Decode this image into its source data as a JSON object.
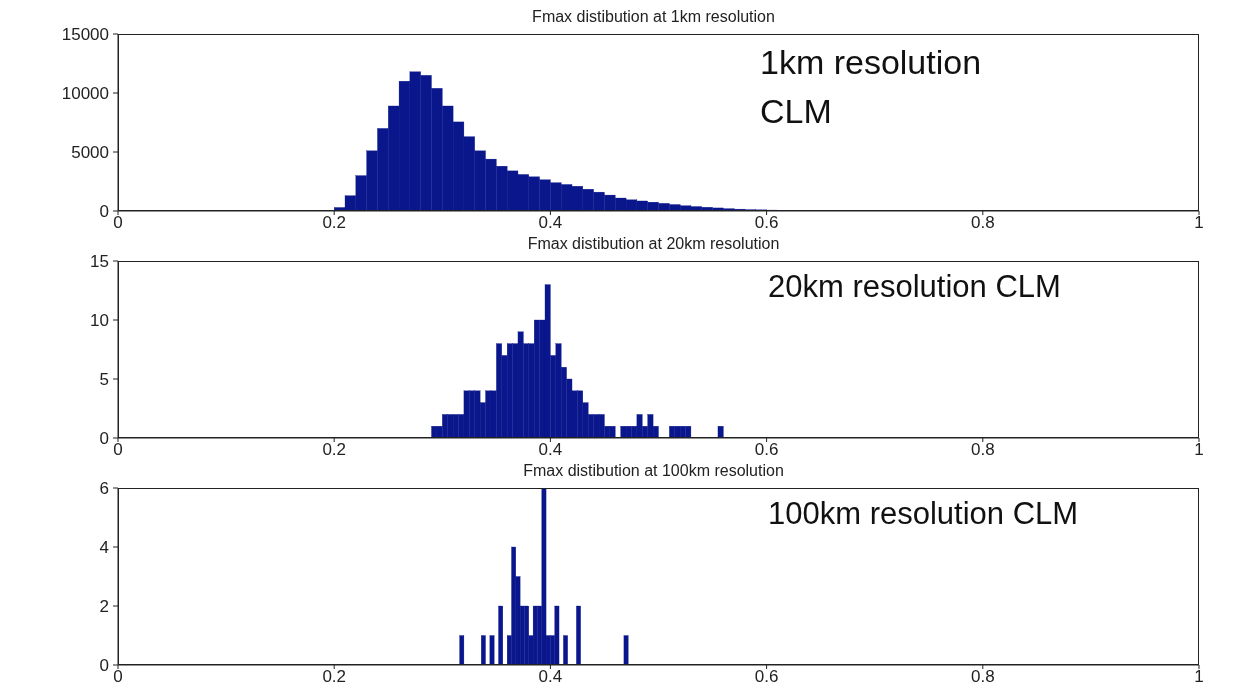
{
  "chart_data": [
    {
      "type": "histogram",
      "title": "Fmax distibution at 1km resolution",
      "color": "#0a168c",
      "annotations": [
        "1km resolution CLM"
      ],
      "bins": [
        0,
        0.01,
        0.02,
        0.03,
        0.04,
        0.05,
        0.06,
        0.07,
        0.08,
        0.09,
        0.1,
        0.11,
        0.12,
        0.13,
        0.14,
        0.15,
        0.16,
        0.17,
        0.18,
        0.19,
        0.2,
        0.21,
        0.22,
        0.23,
        0.24,
        0.25,
        0.26,
        0.27,
        0.28,
        0.29,
        0.3,
        0.31,
        0.32,
        0.33,
        0.34,
        0.35,
        0.36,
        0.37,
        0.38,
        0.39,
        0.4,
        0.41,
        0.42,
        0.43,
        0.44,
        0.45,
        0.46,
        0.47,
        0.48,
        0.49,
        0.5,
        0.51,
        0.52,
        0.53,
        0.54,
        0.55,
        0.56,
        0.57,
        0.58,
        0.59,
        0.6,
        0.61,
        0.62,
        0.63,
        0.64,
        0.65,
        0.66,
        0.67,
        0.68,
        0.69,
        0.7,
        0.71,
        0.72,
        0.73,
        0.74,
        0.75,
        0.76,
        0.77,
        0.78,
        0.79,
        0.8,
        0.81,
        0.82,
        0.83,
        0.84,
        0.85,
        0.86,
        0.87,
        0.88,
        0.89,
        0.9,
        0.91,
        0.92,
        0.93,
        0.94,
        0.95,
        0.96,
        0.97,
        0.98,
        0.99,
        1
      ],
      "values": [
        0,
        0,
        0,
        50,
        50,
        50,
        0,
        50,
        0,
        0,
        0,
        0,
        0,
        0,
        0,
        0,
        0,
        0,
        0,
        0,
        300,
        1300,
        3000,
        5100,
        7000,
        8900,
        11000,
        11800,
        11500,
        10400,
        8900,
        7550,
        6300,
        5100,
        4400,
        3800,
        3400,
        3100,
        2900,
        2650,
        2400,
        2250,
        2100,
        1850,
        1600,
        1350,
        1100,
        950,
        850,
        750,
        650,
        550,
        450,
        380,
        320,
        260,
        200,
        160,
        120,
        100,
        80,
        60,
        50,
        50,
        0,
        0,
        0,
        0,
        0,
        0,
        0,
        0,
        0,
        0,
        0,
        0,
        0,
        0,
        0,
        0,
        0,
        0,
        0,
        0,
        0,
        0,
        0,
        0,
        0,
        0,
        50,
        50,
        50,
        50,
        50,
        50,
        50,
        50,
        50,
        0
      ],
      "xlim": [
        0,
        1
      ],
      "xticks": [
        0,
        0.2,
        0.4,
        0.6,
        0.8,
        1
      ],
      "ylim": [
        0,
        15000
      ],
      "yticks": [
        0,
        5000,
        10000,
        15000
      ]
    },
    {
      "type": "histogram",
      "title": "Fmax distibution at 20km resolution",
      "color": "#0a168c",
      "annotations": [
        "20km resolution CLM"
      ],
      "bins": [
        0.29,
        0.295,
        0.3,
        0.305,
        0.31,
        0.315,
        0.32,
        0.325,
        0.33,
        0.335,
        0.34,
        0.345,
        0.35,
        0.355,
        0.36,
        0.365,
        0.37,
        0.375,
        0.38,
        0.385,
        0.39,
        0.395,
        0.4,
        0.405,
        0.41,
        0.415,
        0.42,
        0.425,
        0.43,
        0.435,
        0.44,
        0.445,
        0.45,
        0.455,
        0.46,
        0.465,
        0.47,
        0.475,
        0.48,
        0.485,
        0.49,
        0.495,
        0.5,
        0.505,
        0.51,
        0.515,
        0.52,
        0.525,
        0.53,
        0.535,
        0.54,
        0.545,
        0.55,
        0.555,
        0.56
      ],
      "values": [
        1,
        1,
        2,
        2,
        2,
        2,
        4,
        4,
        4,
        3,
        4,
        4,
        8,
        7,
        8,
        8,
        9,
        8,
        8,
        10,
        10,
        13,
        7,
        8,
        6,
        5,
        4,
        4,
        3,
        2,
        2,
        2,
        1,
        1,
        0,
        1,
        1,
        1,
        2,
        1,
        2,
        1,
        0,
        0,
        1,
        1,
        1,
        1,
        0,
        0,
        0,
        0,
        0,
        1
      ],
      "xlim": [
        0,
        1
      ],
      "xticks": [
        0,
        0.2,
        0.4,
        0.6,
        0.8,
        1
      ],
      "ylim": [
        0,
        15
      ],
      "yticks": [
        0,
        5,
        10,
        15
      ]
    },
    {
      "type": "histogram",
      "title": "Fmax distibution at 100km resolution",
      "color": "#0a168c",
      "annotations": [
        "100km resolution CLM"
      ],
      "bins": [
        0.316,
        0.32,
        0.324,
        0.328,
        0.332,
        0.336,
        0.34,
        0.344,
        0.348,
        0.352,
        0.356,
        0.36,
        0.364,
        0.368,
        0.372,
        0.376,
        0.38,
        0.384,
        0.388,
        0.392,
        0.396,
        0.4,
        0.404,
        0.408,
        0.412,
        0.416,
        0.42,
        0.424,
        0.428,
        0.432,
        0.436,
        0.44,
        0.444,
        0.448,
        0.452,
        0.456,
        0.46,
        0.464,
        0.468,
        0.472
      ],
      "values": [
        1,
        0,
        0,
        0,
        0,
        1,
        0,
        1,
        0,
        2,
        0,
        1,
        4,
        3,
        2,
        2,
        1,
        2,
        2,
        6,
        1,
        1,
        2,
        0,
        1,
        0,
        0,
        2,
        0,
        0,
        0,
        0,
        0,
        0,
        0,
        0,
        0,
        0,
        1
      ],
      "xlim": [
        0,
        1
      ],
      "xticks": [
        0,
        0.2,
        0.4,
        0.6,
        0.8,
        1
      ],
      "ylim": [
        0,
        6
      ],
      "yticks": [
        0,
        2,
        4,
        6
      ]
    }
  ]
}
